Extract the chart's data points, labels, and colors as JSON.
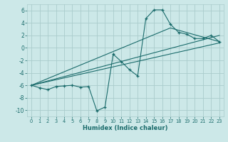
{
  "title": "",
  "xlabel": "Humidex (Indice chaleur)",
  "xlim": [
    -0.5,
    23.5
  ],
  "ylim": [
    -11,
    7
  ],
  "yticks": [
    -10,
    -8,
    -6,
    -4,
    -2,
    0,
    2,
    4,
    6
  ],
  "xticks": [
    0,
    1,
    2,
    3,
    4,
    5,
    6,
    7,
    8,
    9,
    10,
    11,
    12,
    13,
    14,
    15,
    16,
    17,
    18,
    19,
    20,
    21,
    22,
    23
  ],
  "bg_color": "#cce8e8",
  "grid_color": "#aacccc",
  "line_color": "#1a6b6b",
  "main_x": [
    0,
    1,
    2,
    3,
    4,
    5,
    6,
    7,
    8,
    9,
    10,
    11,
    12,
    13,
    14,
    15,
    16,
    17,
    18,
    19,
    20,
    21,
    22,
    23
  ],
  "main_y": [
    -6.0,
    -6.4,
    -6.7,
    -6.2,
    -6.1,
    -6.0,
    -6.3,
    -6.2,
    -10.1,
    -9.5,
    -1.0,
    -2.2,
    -3.5,
    -4.5,
    4.7,
    6.1,
    6.1,
    3.8,
    2.5,
    2.2,
    1.5,
    1.5,
    2.0,
    1.0
  ],
  "line1_x": [
    0,
    23
  ],
  "line1_y": [
    -6.0,
    0.8
  ],
  "line2_x": [
    0,
    23
  ],
  "line2_y": [
    -6.0,
    2.0
  ],
  "line3_x": [
    0,
    17,
    23
  ],
  "line3_y": [
    -6.0,
    3.2,
    1.0
  ]
}
